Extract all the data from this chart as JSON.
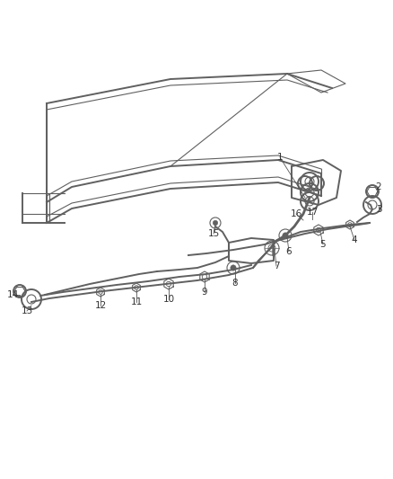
{
  "bg_color": "#ffffff",
  "line_color": "#606060",
  "label_color": "#333333",
  "fig_width": 4.39,
  "fig_height": 5.33,
  "dpi": 100
}
